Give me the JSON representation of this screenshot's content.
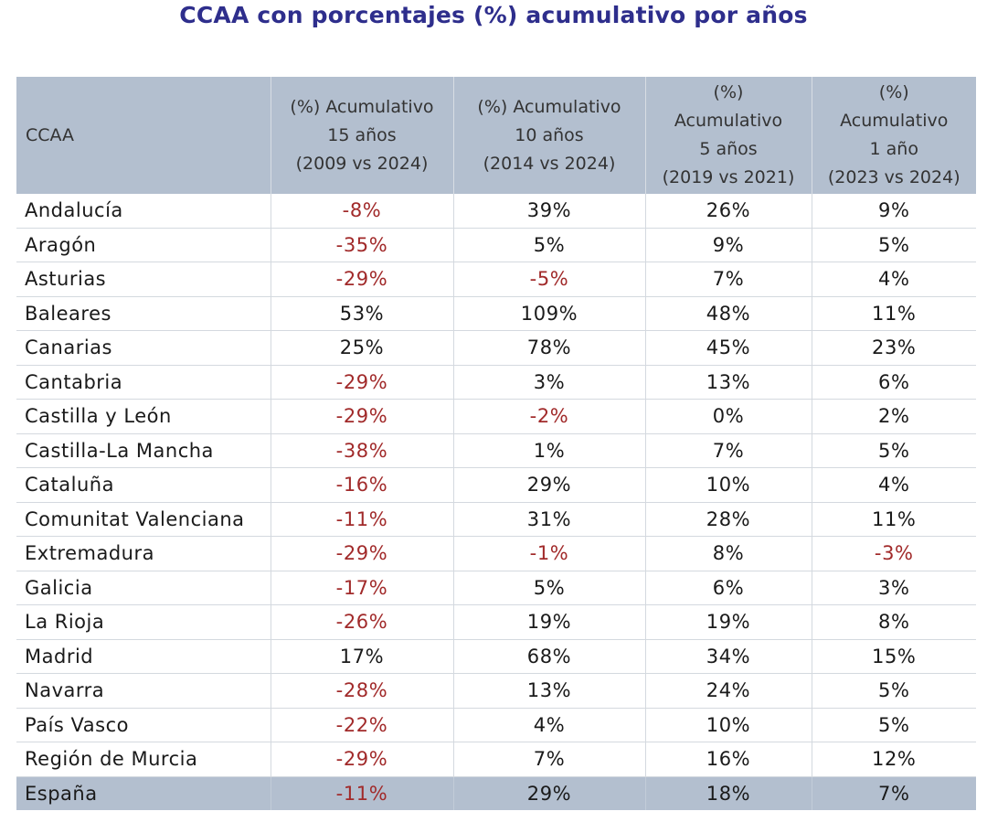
{
  "title": "CCAA con porcentajes (%) acumulativo por años",
  "colors": {
    "title": "#2e2e8c",
    "header_bg": "#b3bfcf",
    "negative": "#a12a2a",
    "text": "#1a1a1a"
  },
  "chart_data": {
    "type": "table",
    "title": "CCAA con porcentajes (%) acumulativo por años",
    "columns": [
      {
        "lines": [
          "CCAA"
        ]
      },
      {
        "lines": [
          "(%) Acumulativo",
          "15 años",
          "(2009 vs 2024)"
        ]
      },
      {
        "lines": [
          "(%) Acumulativo",
          "10 años",
          "(2014 vs 2024)"
        ]
      },
      {
        "lines": [
          "(%)",
          "Acumulativo",
          "5 años",
          "(2019 vs 2021)"
        ]
      },
      {
        "lines": [
          "(%)",
          "Acumulativo",
          "1 año",
          "(2023 vs 2024)"
        ]
      }
    ],
    "rows": [
      {
        "region": "Andalucía",
        "values": [
          "-8%",
          "39%",
          "26%",
          "9%"
        ]
      },
      {
        "region": "Aragón",
        "values": [
          "-35%",
          "5%",
          "9%",
          "5%"
        ]
      },
      {
        "region": "Asturias",
        "values": [
          "-29%",
          "-5%",
          "7%",
          "4%"
        ]
      },
      {
        "region": "Baleares",
        "values": [
          "53%",
          "109%",
          "48%",
          "11%"
        ]
      },
      {
        "region": "Canarias",
        "values": [
          "25%",
          "78%",
          "45%",
          "23%"
        ]
      },
      {
        "region": "Cantabria",
        "values": [
          "-29%",
          "3%",
          "13%",
          "6%"
        ]
      },
      {
        "region": "Castilla y León",
        "values": [
          "-29%",
          "-2%",
          "0%",
          "2%"
        ]
      },
      {
        "region": "Castilla-La Mancha",
        "values": [
          "-38%",
          "1%",
          "7%",
          "5%"
        ]
      },
      {
        "region": "Cataluña",
        "values": [
          "-16%",
          "29%",
          "10%",
          "4%"
        ]
      },
      {
        "region": "Comunitat Valenciana",
        "values": [
          "-11%",
          "31%",
          "28%",
          "11%"
        ]
      },
      {
        "region": "Extremadura",
        "values": [
          "-29%",
          "-1%",
          "8%",
          "-3%"
        ]
      },
      {
        "region": "Galicia",
        "values": [
          "-17%",
          "5%",
          "6%",
          "3%"
        ]
      },
      {
        "region": "La Rioja",
        "values": [
          "-26%",
          "19%",
          "19%",
          "8%"
        ]
      },
      {
        "region": "Madrid",
        "values": [
          "17%",
          "68%",
          "34%",
          "15%"
        ]
      },
      {
        "region": "Navarra",
        "values": [
          "-28%",
          "13%",
          "24%",
          "5%"
        ]
      },
      {
        "region": "País Vasco",
        "values": [
          "-22%",
          "4%",
          "10%",
          "5%"
        ]
      },
      {
        "region": "Región de Murcia",
        "values": [
          "-29%",
          "7%",
          "16%",
          "12%"
        ]
      }
    ],
    "total": {
      "region": "España",
      "values": [
        "-11%",
        "29%",
        "18%",
        "7%"
      ]
    }
  }
}
